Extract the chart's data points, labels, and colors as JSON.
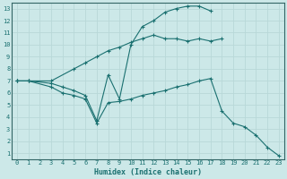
{
  "xlabel": "Humidex (Indice chaleur)",
  "ylabel": "",
  "bg_color": "#cce8e8",
  "grid_color": "#b8d8d8",
  "line_color": "#1a7070",
  "spine_color": "#336666",
  "xlim": [
    -0.5,
    23.5
  ],
  "ylim": [
    0.5,
    13.5
  ],
  "xticks": [
    0,
    1,
    2,
    3,
    4,
    5,
    6,
    7,
    8,
    9,
    10,
    11,
    12,
    13,
    14,
    15,
    16,
    17,
    18,
    19,
    20,
    21,
    22,
    23
  ],
  "yticks": [
    1,
    2,
    3,
    4,
    5,
    6,
    7,
    8,
    9,
    10,
    11,
    12,
    13
  ],
  "line1_x": [
    0,
    1,
    3,
    5,
    6,
    7,
    8,
    9,
    10,
    11,
    12,
    13,
    14,
    15,
    16,
    17,
    18
  ],
  "line1_y": [
    7.0,
    7.0,
    7.0,
    8.0,
    8.5,
    9.0,
    9.5,
    9.8,
    10.2,
    10.5,
    10.8,
    10.5,
    10.5,
    10.3,
    10.5,
    10.3,
    10.5
  ],
  "line2_x": [
    0,
    1,
    3,
    4,
    5,
    6,
    7,
    8,
    9,
    10,
    11,
    12,
    13,
    14,
    15,
    16,
    17
  ],
  "line2_y": [
    7.0,
    7.0,
    6.8,
    6.5,
    6.2,
    5.8,
    3.7,
    7.5,
    5.5,
    10.0,
    11.5,
    12.0,
    12.7,
    13.0,
    13.2,
    13.2,
    12.8
  ],
  "line3_x": [
    0,
    1,
    3,
    4,
    5,
    6,
    7,
    8,
    9,
    10,
    11,
    12,
    13,
    14,
    15,
    16,
    17,
    18,
    19,
    20,
    21,
    22,
    23
  ],
  "line3_y": [
    7.0,
    7.0,
    6.5,
    6.0,
    5.8,
    5.5,
    3.5,
    5.2,
    5.3,
    5.5,
    5.8,
    6.0,
    6.2,
    6.5,
    6.7,
    7.0,
    7.2,
    4.5,
    3.5,
    3.2,
    2.5,
    1.5,
    0.8
  ]
}
